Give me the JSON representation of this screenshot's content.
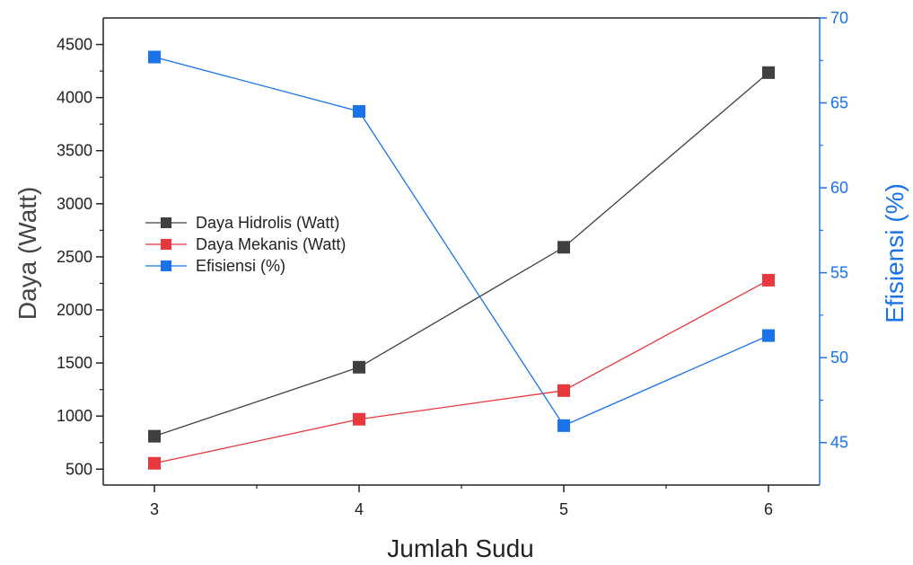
{
  "chart_data": {
    "type": "line",
    "xlabel": "Jumlah Sudu",
    "ylabel_left": "Daya (Watt)",
    "ylabel_right": "Efisiensi (%)",
    "x": [
      3,
      4,
      5,
      6
    ],
    "x_ticks": [
      "3",
      "4",
      "5",
      "6"
    ],
    "xlim": [
      2.75,
      6.25
    ],
    "ylim_left": [
      350,
      4750
    ],
    "ylim_right": [
      42.5,
      70
    ],
    "y_ticks_left": [
      500,
      1000,
      1500,
      2000,
      2500,
      3000,
      3500,
      4000,
      4500
    ],
    "y_ticks_right": [
      45,
      50,
      55,
      60,
      65,
      70
    ],
    "grid": false,
    "legend_position": "center-left",
    "series": [
      {
        "name": "Daya Hidrolis (Watt)",
        "axis": "left",
        "color": "#404040",
        "values": [
          810,
          1460,
          2590,
          4235
        ]
      },
      {
        "name": "Daya Mekanis (Watt)",
        "axis": "left",
        "color": "#e8383d",
        "values": [
          555,
          970,
          1240,
          2280
        ]
      },
      {
        "name": "Efisiensi (%)",
        "axis": "right",
        "color": "#1a73e8",
        "values": [
          67.7,
          64.5,
          46.0,
          51.3
        ]
      }
    ]
  }
}
